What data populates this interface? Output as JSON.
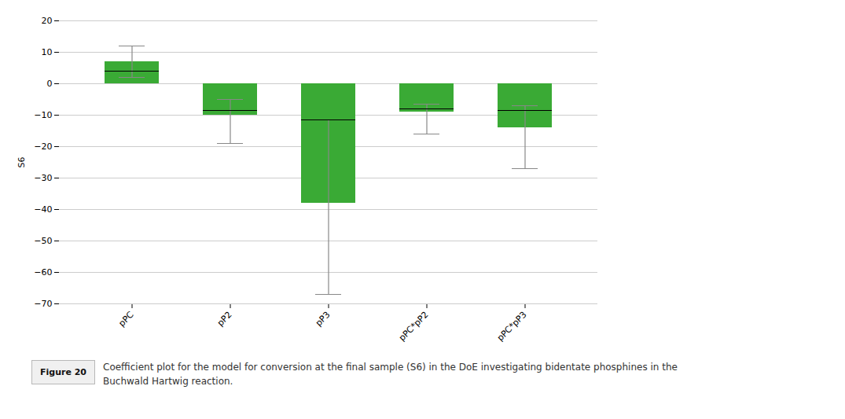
{
  "chart_data": {
    "type": "bar",
    "categories": [
      "pPC",
      "pP2",
      "pP3",
      "pPC*pP2",
      "pPC*pP3"
    ],
    "values": [
      7.0,
      -10.0,
      -38.0,
      -9.0,
      -14.0
    ],
    "error_upper": [
      12.0,
      -5.0,
      -11.5,
      -6.5,
      -7.0
    ],
    "error_lower": [
      2.0,
      -19.0,
      -67.0,
      -16.0,
      -27.0
    ],
    "median": [
      4.0,
      -8.5,
      -11.5,
      -8.0,
      -8.5
    ],
    "color": "#3aaa35",
    "ylabel": "S6",
    "ylim": [
      -70,
      20
    ],
    "yticks": [
      20,
      10,
      0,
      -10,
      -20,
      -30,
      -40,
      -50,
      -60,
      -70
    ],
    "grid": true,
    "figure_label": "Figure 20",
    "caption": [
      "Coefficient plot for the model for conversion at the final sample (S6) in the DoE investigating bidentate phosphines in the",
      "Buchwald Hartwig reaction."
    ]
  }
}
